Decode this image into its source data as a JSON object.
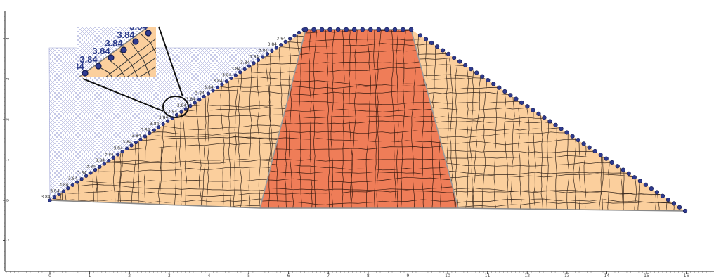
{
  "colors": {
    "shell": "#fbcf9d",
    "core": "#ef7d58",
    "mesh_line": "#2a2a2a",
    "node_fill": "#2e3a8f",
    "node_stroke": "#11184f",
    "reservoir_hatch": "#7f86c8",
    "boundary": "#8a8a8a",
    "axis": "#222222"
  },
  "diagram": {
    "nodal_value": "3.84",
    "zoom_label": "3.84",
    "x_ticks": [
      "0",
      "1",
      "2",
      "3",
      "4",
      "5",
      "6",
      "7",
      "8",
      "9",
      "10",
      "11",
      "12",
      "13",
      "14",
      "15",
      "16"
    ],
    "y_ticks": [
      "4",
      "3",
      "2",
      "1",
      "0",
      "-1"
    ]
  }
}
